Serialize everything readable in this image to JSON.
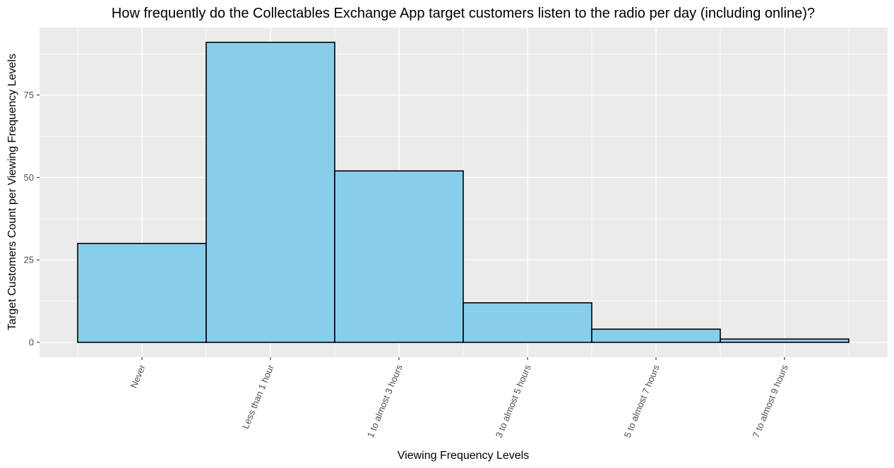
{
  "chart_data": {
    "type": "bar",
    "title": "How frequently do the Collectables Exchange App target customers listen to the radio per day (including online)?",
    "xlabel": "Viewing Frequency Levels",
    "ylabel": "Target Customers Count per Viewing Frequency Levels",
    "categories": [
      "Never",
      "Less than 1 hour",
      "1 to almost 3 hours",
      "3 to almost 5 hours",
      "5 to almost 7 hours",
      "7 to almost 9 hours"
    ],
    "values": [
      30,
      91,
      52,
      12,
      4,
      1
    ],
    "yticks": [
      0,
      25,
      50,
      75
    ],
    "ylim": [
      -4.5,
      95.5
    ],
    "grid": true,
    "colors": {
      "bar_fill": "#87ceeb",
      "bar_stroke": "#000000",
      "panel_bg": "#ebebeb",
      "grid": "#ffffff"
    }
  }
}
